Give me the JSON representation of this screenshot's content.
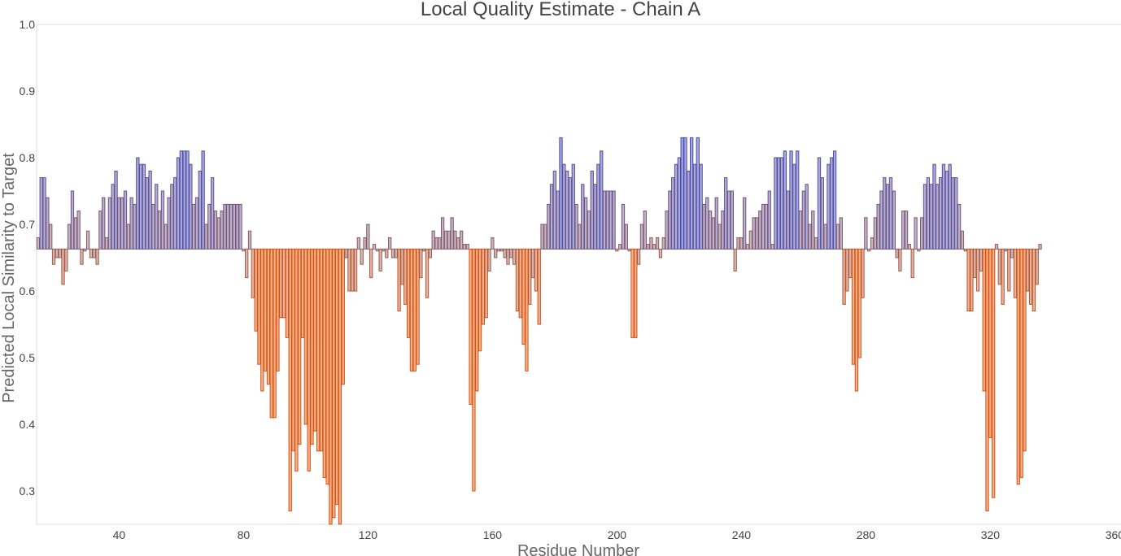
{
  "chart_data": {
    "type": "bar",
    "title": "Local Quality Estimate - Chain A",
    "xlabel": "Residue Number",
    "ylabel": "Predicted Local Similarity to Target",
    "baseline": 0.663,
    "xlim": [
      13.5,
      362
    ],
    "ylim": [
      0.25,
      1.0
    ],
    "x_ticks": [
      "40",
      "80",
      "120",
      "160",
      "200",
      "240",
      "280",
      "320",
      "360"
    ],
    "y_ticks": [
      "0.3",
      "0.4",
      "0.5",
      "0.6",
      "0.7",
      "0.8",
      "0.9",
      "1.0"
    ],
    "grid": false,
    "legend": "none",
    "colors": {
      "high": "#5b5fd0",
      "mid": "#b07878",
      "low": "#ff6a1e"
    },
    "x_start": 14,
    "values": [
      0.68,
      0.77,
      0.77,
      0.74,
      0.7,
      0.64,
      0.65,
      0.65,
      0.61,
      0.63,
      0.7,
      0.75,
      0.71,
      0.72,
      0.64,
      0.66,
      0.69,
      0.65,
      0.65,
      0.64,
      0.72,
      0.74,
      0.68,
      0.74,
      0.76,
      0.78,
      0.74,
      0.74,
      0.75,
      0.7,
      0.74,
      0.73,
      0.8,
      0.79,
      0.79,
      0.77,
      0.78,
      0.73,
      0.76,
      0.72,
      0.75,
      0.7,
      0.74,
      0.76,
      0.77,
      0.8,
      0.81,
      0.81,
      0.81,
      0.79,
      0.73,
      0.74,
      0.78,
      0.81,
      0.7,
      0.73,
      0.77,
      0.72,
      0.71,
      0.72,
      0.73,
      0.73,
      0.73,
      0.73,
      0.73,
      0.73,
      0.66,
      0.62,
      0.69,
      0.59,
      0.54,
      0.49,
      0.45,
      0.48,
      0.46,
      0.41,
      0.41,
      0.48,
      0.56,
      0.56,
      0.53,
      0.27,
      0.36,
      0.33,
      0.37,
      0.53,
      0.4,
      0.33,
      0.37,
      0.39,
      0.36,
      0.36,
      0.32,
      0.31,
      0.25,
      0.26,
      0.28,
      0.25,
      0.46,
      0.65,
      0.6,
      0.6,
      0.6,
      0.68,
      0.64,
      0.68,
      0.7,
      0.62,
      0.67,
      0.66,
      0.63,
      0.66,
      0.65,
      0.68,
      0.65,
      0.65,
      0.57,
      0.61,
      0.58,
      0.53,
      0.48,
      0.48,
      0.49,
      0.62,
      0.66,
      0.59,
      0.65,
      0.69,
      0.68,
      0.68,
      0.71,
      0.69,
      0.69,
      0.71,
      0.69,
      0.68,
      0.69,
      0.67,
      0.67,
      0.43,
      0.3,
      0.45,
      0.51,
      0.55,
      0.56,
      0.63,
      0.68,
      0.65,
      0.66,
      0.66,
      0.65,
      0.64,
      0.65,
      0.64,
      0.57,
      0.56,
      0.52,
      0.48,
      0.58,
      0.62,
      0.6,
      0.55,
      0.7,
      0.7,
      0.73,
      0.76,
      0.78,
      0.75,
      0.83,
      0.79,
      0.78,
      0.77,
      0.79,
      0.73,
      0.7,
      0.76,
      0.74,
      0.72,
      0.78,
      0.76,
      0.79,
      0.81,
      0.75,
      0.75,
      0.75,
      0.75,
      0.66,
      0.67,
      0.73,
      0.7,
      0.66,
      0.53,
      0.53,
      0.64,
      0.7,
      0.72,
      0.67,
      0.68,
      0.67,
      0.68,
      0.65,
      0.68,
      0.72,
      0.75,
      0.77,
      0.79,
      0.8,
      0.83,
      0.83,
      0.78,
      0.83,
      0.79,
      0.83,
      0.79,
      0.73,
      0.74,
      0.72,
      0.71,
      0.74,
      0.7,
      0.72,
      0.77,
      0.75,
      0.75,
      0.63,
      0.68,
      0.68,
      0.74,
      0.67,
      0.69,
      0.71,
      0.71,
      0.72,
      0.73,
      0.73,
      0.75,
      0.67,
      0.8,
      0.8,
      0.8,
      0.81,
      0.75,
      0.81,
      0.79,
      0.81,
      0.72,
      0.75,
      0.76,
      0.7,
      0.72,
      0.68,
      0.8,
      0.77,
      0.7,
      0.79,
      0.8,
      0.81,
      0.7,
      0.71,
      0.58,
      0.6,
      0.62,
      0.49,
      0.45,
      0.5,
      0.59,
      0.71,
      0.66,
      0.68,
      0.71,
      0.73,
      0.75,
      0.77,
      0.76,
      0.77,
      0.75,
      0.65,
      0.63,
      0.72,
      0.72,
      0.67,
      0.62,
      0.71,
      0.66,
      0.71,
      0.76,
      0.77,
      0.76,
      0.79,
      0.76,
      0.77,
      0.79,
      0.78,
      0.79,
      0.77,
      0.77,
      0.73,
      0.69,
      0.66,
      0.57,
      0.57,
      0.62,
      0.6,
      0.63,
      0.45,
      0.27,
      0.38,
      0.29,
      0.67,
      0.61,
      0.58,
      0.66,
      0.6,
      0.65,
      0.59,
      0.31,
      0.32,
      0.36,
      0.6,
      0.58,
      0.57,
      0.61,
      0.67
    ]
  }
}
